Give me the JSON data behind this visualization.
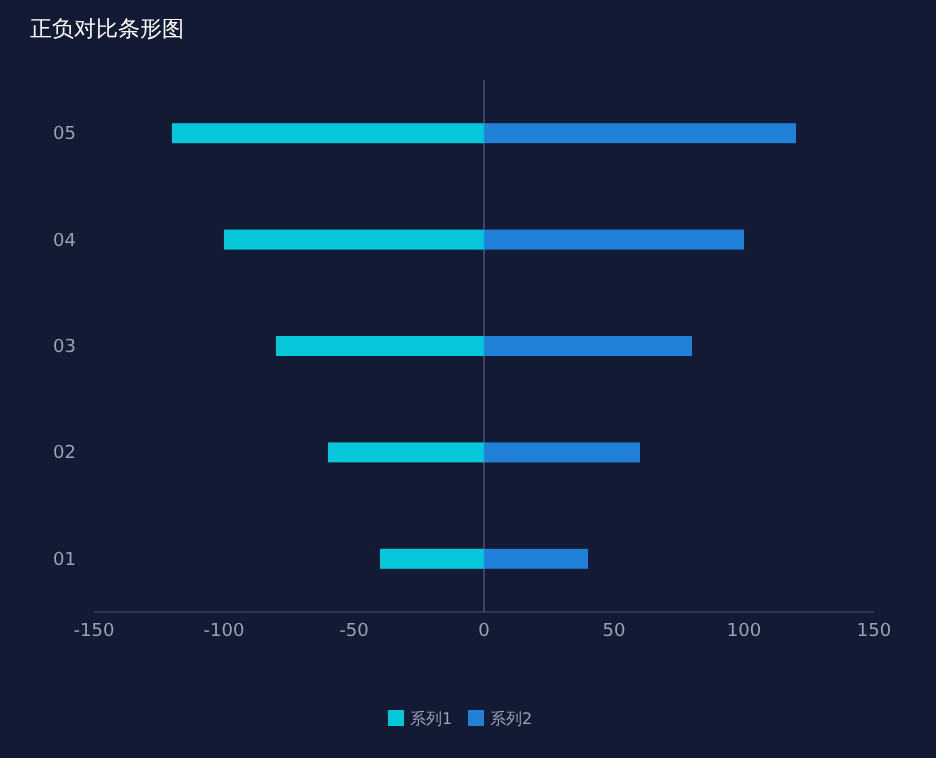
{
  "chart_data": {
    "type": "bar",
    "orientation": "horizontal",
    "stacked": true,
    "title": "正负对比条形图",
    "categories": [
      "05",
      "04",
      "03",
      "02",
      "01"
    ],
    "series": [
      {
        "name": "系列1",
        "color": "#06c7d9",
        "values": [
          -120,
          -100,
          -80,
          -60,
          -40
        ]
      },
      {
        "name": "系列2",
        "color": "#2181d9",
        "values": [
          120,
          100,
          80,
          60,
          40
        ]
      }
    ],
    "xlim": [
      -150,
      150
    ],
    "xticks": [
      -150,
      -100,
      -50,
      0,
      50,
      100,
      150
    ],
    "ref_lines": [
      {
        "axis": "x",
        "value": 0,
        "color": "#3a4466"
      }
    ],
    "grid": false,
    "legend": "bottom"
  }
}
